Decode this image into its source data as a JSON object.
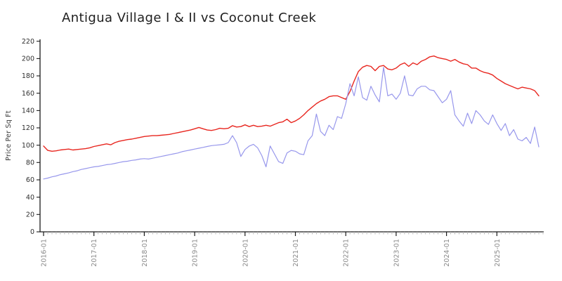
{
  "chart_data": {
    "type": "line",
    "title": "Antigua Village I & II vs Coconut Creek",
    "ylabel": "Price Per Sq Ft",
    "xlabel": "",
    "ylim": [
      0,
      220
    ],
    "y_ticks": [
      0,
      20,
      40,
      60,
      80,
      100,
      120,
      140,
      160,
      180,
      200,
      220
    ],
    "x_tick_labels": [
      "2016-01",
      "2017-01",
      "2018-01",
      "2019-01",
      "2020-01",
      "2021-01",
      "2022-01",
      "2023-01",
      "2024-01",
      "2025-01"
    ],
    "x_start": "2016-01",
    "x_end": "2025-11",
    "x_interval": "monthly",
    "n_points": 119,
    "grid": false,
    "legend": "none",
    "axis_color": "#1a1a1a",
    "minor_tick_color": "#b5b5b5",
    "x_tick_label_color": "#8a8a8a",
    "y_tick_label_color": "#2e2e2e",
    "series": [
      {
        "id": "red-series",
        "label": "red line (upper series)",
        "color": "#e8261f",
        "width": 1.4,
        "values": [
          99,
          94,
          93,
          93.5,
          94.5,
          95,
          95.5,
          94.5,
          95,
          95.5,
          96,
          97,
          98.5,
          99.5,
          100.5,
          101.5,
          100.5,
          103,
          104.5,
          105.5,
          106.5,
          107,
          108,
          109,
          110,
          110.5,
          111,
          111,
          111.5,
          112,
          112.5,
          113.5,
          114.5,
          115.5,
          116.5,
          117.5,
          119,
          120.5,
          119,
          117.5,
          117,
          118,
          119.5,
          119,
          119.5,
          122.5,
          121,
          121.5,
          123.5,
          121.5,
          123,
          121.5,
          122,
          123,
          122,
          124,
          126,
          127,
          130,
          126,
          128,
          131,
          135,
          140,
          144,
          148,
          151,
          153,
          156,
          157,
          157,
          155,
          153,
          162,
          174,
          185,
          190,
          192,
          191,
          186,
          191,
          192,
          188,
          187,
          189,
          193,
          195,
          191,
          195,
          193,
          197,
          199,
          202,
          203,
          201,
          200,
          199,
          197,
          199,
          196,
          194,
          193,
          189,
          189,
          186,
          184,
          183,
          181,
          177,
          174,
          171,
          169,
          167,
          165,
          167,
          166,
          165,
          163,
          157
        ]
      },
      {
        "id": "blue-series",
        "label": "blue line (lower series)",
        "color": "#9797ec",
        "width": 1.2,
        "values": [
          61,
          62,
          63.5,
          64.5,
          66,
          67,
          68,
          69.5,
          70.5,
          72,
          73,
          74,
          75,
          75.5,
          76.5,
          77.5,
          78,
          79,
          80,
          81,
          81.5,
          82.5,
          83,
          84,
          84.5,
          84,
          85,
          86,
          87,
          88,
          89,
          90,
          91,
          92.5,
          93.5,
          94.5,
          95.5,
          96.5,
          97.5,
          98.5,
          99.5,
          100,
          100.5,
          101,
          103,
          111,
          103,
          87,
          95,
          99,
          101,
          97,
          88,
          75,
          99,
          90,
          81,
          79,
          91,
          94,
          93,
          90,
          89,
          105,
          111,
          136,
          116,
          111,
          123,
          118,
          133,
          131,
          148,
          171,
          157,
          179,
          155,
          152,
          168,
          158,
          150,
          190,
          157,
          159,
          153,
          160,
          180,
          158,
          157,
          165,
          168,
          168,
          164,
          163,
          156,
          149,
          153,
          163,
          135,
          128,
          122,
          137,
          125,
          140,
          135,
          128,
          124,
          135,
          125,
          117,
          125,
          111,
          118,
          107,
          105,
          109,
          102,
          121,
          98
        ]
      }
    ]
  }
}
